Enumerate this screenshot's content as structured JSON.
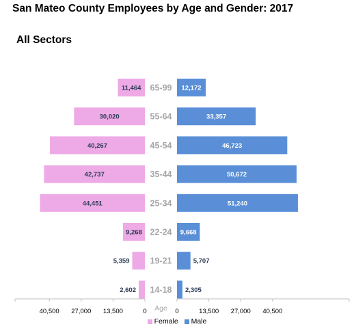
{
  "title": "San Mateo County Employees by Age and Gender: 2017",
  "subtitle": "All Sectors",
  "colors": {
    "female": "#eeaae6",
    "male": "#5a8fd8"
  },
  "chart_data": {
    "type": "bar",
    "orientation": "horizontal-pyramid",
    "categories": [
      "65-99",
      "55-64",
      "45-54",
      "35-44",
      "25-34",
      "22-24",
      "19-21",
      "14-18"
    ],
    "series": [
      {
        "name": "Female",
        "values": [
          11464,
          30020,
          40267,
          42737,
          44451,
          9268,
          5359,
          2602
        ],
        "labels": [
          "11,464",
          "30,020",
          "40,267",
          "42,737",
          "44,451",
          "9,268",
          "5,359",
          "2,602"
        ]
      },
      {
        "name": "Male",
        "values": [
          12172,
          33357,
          46723,
          50672,
          51240,
          9668,
          5707,
          2305
        ],
        "labels": [
          "12,172",
          "33,357",
          "46,723",
          "50,672",
          "51,240",
          "9,668",
          "5,707",
          "2,305"
        ]
      }
    ],
    "xlabel": "Age",
    "left_ticks": [
      "40,500",
      "27,000",
      "13,500",
      "0"
    ],
    "left_tick_values": [
      40500,
      27000,
      13500,
      0
    ],
    "right_ticks": [
      "0",
      "13,500",
      "27,000",
      "40,500"
    ],
    "right_tick_values": [
      0,
      13500,
      27000,
      40500
    ],
    "grid": false,
    "legend": {
      "position": "bottom",
      "items": [
        "Female",
        "Male"
      ]
    }
  }
}
